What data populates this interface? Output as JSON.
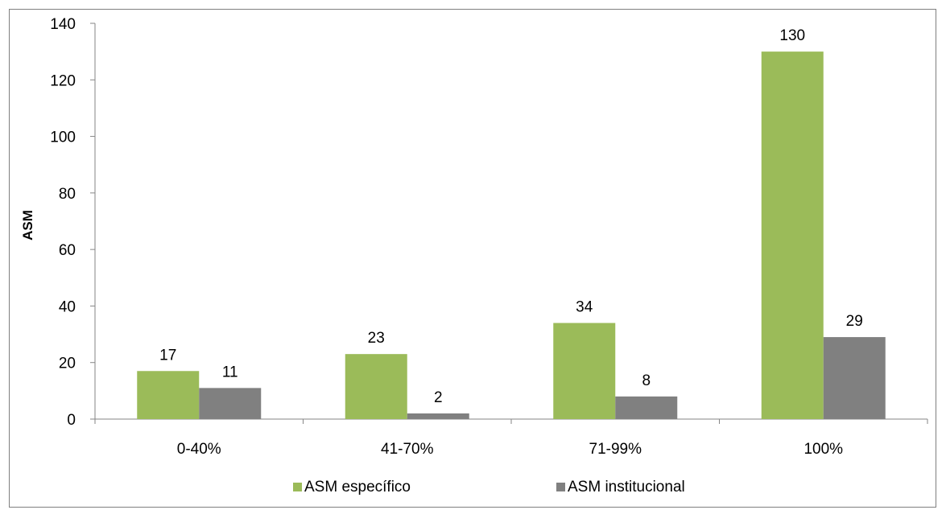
{
  "chart_data": {
    "type": "bar",
    "title": "",
    "xlabel": "",
    "ylabel": "ASM",
    "categories": [
      "0-40%",
      "41-70%",
      "71-99%",
      "100%"
    ],
    "series": [
      {
        "name": "ASM específico",
        "values": [
          17,
          23,
          34,
          130
        ],
        "color": "#9bbb59"
      },
      {
        "name": "ASM institucional",
        "values": [
          11,
          2,
          8,
          29
        ],
        "color": "#808080"
      }
    ],
    "ylim": [
      0,
      140
    ],
    "yticks": [
      0,
      20,
      40,
      60,
      80,
      100,
      120,
      140
    ],
    "grid": false,
    "legend": "bottom"
  }
}
